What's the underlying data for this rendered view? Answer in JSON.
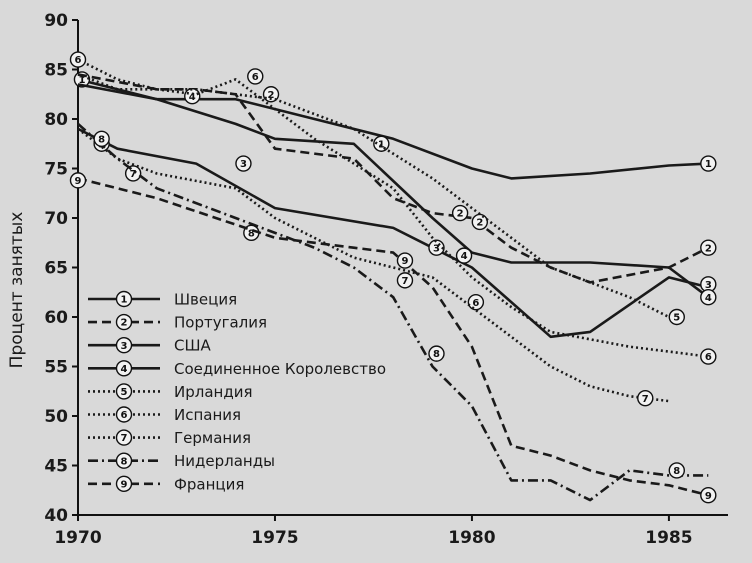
{
  "chart_data": {
    "type": "line",
    "title": "",
    "xlabel": "",
    "ylabel": "Процент занятых",
    "xlim": [
      1970,
      1986.5
    ],
    "ylim": [
      40,
      90
    ],
    "x_ticks": [
      1970,
      1975,
      1980,
      1985
    ],
    "y_ticks": [
      40,
      45,
      50,
      55,
      60,
      65,
      70,
      75,
      80,
      85,
      90
    ],
    "grid": false,
    "legend_position": "left",
    "series": [
      {
        "id": "1",
        "name": "Швеция",
        "style": "solid",
        "points": [
          [
            1970,
            84
          ],
          [
            1972,
            82
          ],
          [
            1974,
            82
          ],
          [
            1976,
            80
          ],
          [
            1978,
            78
          ],
          [
            1980,
            75
          ],
          [
            1981,
            74
          ],
          [
            1983,
            74.5
          ],
          [
            1985,
            75.3
          ],
          [
            1986,
            75.5
          ]
        ],
        "markers": [
          [
            1970.1,
            84
          ],
          [
            1977.7,
            77.5
          ],
          [
            1986,
            75.5
          ]
        ]
      },
      {
        "id": "2",
        "name": "Португалия",
        "style": "dashed",
        "points": [
          [
            1970,
            84.5
          ],
          [
            1972,
            83
          ],
          [
            1973,
            83
          ],
          [
            1974,
            82.5
          ],
          [
            1975,
            77
          ],
          [
            1977,
            76
          ],
          [
            1978,
            72
          ],
          [
            1979,
            70.5
          ],
          [
            1980,
            70
          ],
          [
            1981,
            67
          ],
          [
            1982,
            65
          ],
          [
            1983,
            63.5
          ],
          [
            1985,
            65
          ],
          [
            1986,
            67
          ]
        ],
        "markers": [
          [
            1974.9,
            82.5
          ],
          [
            1979.7,
            70.5
          ],
          [
            1980.2,
            69.6
          ],
          [
            1986,
            67
          ]
        ]
      },
      {
        "id": "3",
        "name": "США",
        "style": "solid",
        "points": [
          [
            1970,
            79
          ],
          [
            1971,
            77
          ],
          [
            1973,
            75.5
          ],
          [
            1975,
            71
          ],
          [
            1978,
            69
          ],
          [
            1979,
            67
          ],
          [
            1980,
            65
          ],
          [
            1982,
            58
          ],
          [
            1983,
            58.5
          ],
          [
            1985,
            64
          ],
          [
            1986,
            63
          ]
        ],
        "markers": [
          [
            1970.6,
            77.5
          ],
          [
            1974.2,
            75.5
          ],
          [
            1979.1,
            67
          ],
          [
            1986,
            63.3
          ]
        ]
      },
      {
        "id": "4",
        "name": "Соединенное Королевство",
        "style": "solid",
        "points": [
          [
            1970,
            83.5
          ],
          [
            1972,
            82
          ],
          [
            1974,
            79.5
          ],
          [
            1975,
            78
          ],
          [
            1977,
            77.5
          ],
          [
            1979,
            70
          ],
          [
            1980,
            66.5
          ],
          [
            1981,
            65.5
          ],
          [
            1983,
            65.5
          ],
          [
            1985,
            65
          ],
          [
            1986,
            62
          ]
        ],
        "markers": [
          [
            1972.9,
            82.3
          ],
          [
            1979.8,
            66.2
          ],
          [
            1986,
            62
          ]
        ]
      },
      {
        "id": "5",
        "name": "Ирландия",
        "style": "dotted",
        "points": [
          [
            1970,
            84.5
          ],
          [
            1971,
            83
          ],
          [
            1973,
            83
          ],
          [
            1975,
            82
          ],
          [
            1977,
            79
          ],
          [
            1979,
            74
          ],
          [
            1981,
            68
          ],
          [
            1982,
            65
          ],
          [
            1984,
            62
          ],
          [
            1985,
            60
          ]
        ],
        "markers": [
          [
            1985.2,
            60
          ]
        ]
      },
      {
        "id": "6",
        "name": "Испания",
        "style": "dotted",
        "points": [
          [
            1970,
            86
          ],
          [
            1971,
            84
          ],
          [
            1972,
            83
          ],
          [
            1973,
            82.5
          ],
          [
            1974,
            84
          ],
          [
            1976,
            78
          ],
          [
            1978,
            73
          ],
          [
            1979,
            68
          ],
          [
            1980,
            64
          ],
          [
            1981,
            61
          ],
          [
            1982,
            58.5
          ],
          [
            1984,
            57
          ],
          [
            1985,
            56.5
          ],
          [
            1986,
            56
          ]
        ],
        "markers": [
          [
            1970,
            86
          ],
          [
            1974.5,
            84.3
          ],
          [
            1980.1,
            61.5
          ],
          [
            1986,
            56
          ]
        ]
      },
      {
        "id": "7",
        "name": "Германия",
        "style": "dotted",
        "points": [
          [
            1970,
            79
          ],
          [
            1971,
            76
          ],
          [
            1972,
            74.5
          ],
          [
            1974,
            73
          ],
          [
            1975,
            70
          ],
          [
            1977,
            66
          ],
          [
            1979,
            64
          ],
          [
            1980,
            61
          ],
          [
            1981,
            58
          ],
          [
            1982,
            55
          ],
          [
            1983,
            53
          ],
          [
            1984,
            52
          ],
          [
            1985,
            51.5
          ]
        ],
        "markers": [
          [
            1971.4,
            74.5
          ],
          [
            1978.3,
            63.7
          ],
          [
            1984.4,
            51.8
          ]
        ]
      },
      {
        "id": "8",
        "name": "Нидерланды",
        "style": "dashdot",
        "points": [
          [
            1970,
            79.5
          ],
          [
            1971,
            76
          ],
          [
            1972,
            73
          ],
          [
            1974,
            70
          ],
          [
            1976,
            67
          ],
          [
            1977,
            65
          ],
          [
            1978,
            62
          ],
          [
            1979,
            55
          ],
          [
            1980,
            51
          ],
          [
            1981,
            43.5
          ],
          [
            1982,
            43.5
          ],
          [
            1983,
            41.5
          ],
          [
            1984,
            44.5
          ],
          [
            1985,
            44
          ],
          [
            1986,
            44
          ]
        ],
        "markers": [
          [
            1970.6,
            78
          ],
          [
            1974.4,
            68.5
          ],
          [
            1979.1,
            56.3
          ],
          [
            1985.2,
            44.5
          ]
        ]
      },
      {
        "id": "9",
        "name": "Франция",
        "style": "dashed",
        "points": [
          [
            1970,
            74
          ],
          [
            1972,
            72
          ],
          [
            1975,
            68
          ],
          [
            1977,
            67
          ],
          [
            1978,
            66.5
          ],
          [
            1979,
            63
          ],
          [
            1980,
            57
          ],
          [
            1981,
            47
          ],
          [
            1982,
            46
          ],
          [
            1983,
            44.5
          ],
          [
            1984,
            43.5
          ],
          [
            1985,
            43
          ],
          [
            1986,
            42
          ]
        ],
        "markers": [
          [
            1970,
            73.8
          ],
          [
            1978.3,
            65.7
          ],
          [
            1986,
            42
          ]
        ]
      }
    ]
  }
}
